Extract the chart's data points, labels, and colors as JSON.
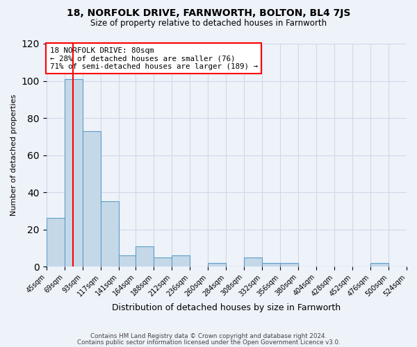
{
  "title": "18, NORFOLK DRIVE, FARNWORTH, BOLTON, BL4 7JS",
  "subtitle": "Size of property relative to detached houses in Farnworth",
  "xlabel": "Distribution of detached houses by size in Farnworth",
  "ylabel": "Number of detached properties",
  "bar_edges": [
    45,
    69,
    93,
    117,
    141,
    164,
    188,
    212,
    236,
    260,
    284,
    308,
    332,
    356,
    380,
    404,
    428,
    452,
    476,
    500,
    524
  ],
  "bar_heights": [
    26,
    101,
    73,
    35,
    6,
    11,
    5,
    6,
    0,
    2,
    0,
    5,
    2,
    2,
    0,
    0,
    0,
    0,
    2,
    0
  ],
  "bar_color": "#c5d8e8",
  "bar_edge_color": "#5a9ec9",
  "red_line_x": 80,
  "ylim": [
    0,
    120
  ],
  "yticks": [
    0,
    20,
    40,
    60,
    80,
    100,
    120
  ],
  "grid_color": "#d0d8e8",
  "background_color": "#eef2f9",
  "annotation_box_text": "18 NORFOLK DRIVE: 80sqm\n← 28% of detached houses are smaller (76)\n71% of semi-detached houses are larger (189) →",
  "footer_line1": "Contains HM Land Registry data © Crown copyright and database right 2024.",
  "footer_line2": "Contains public sector information licensed under the Open Government Licence v3.0.",
  "tick_labels": [
    "45sqm",
    "69sqm",
    "93sqm",
    "117sqm",
    "141sqm",
    "164sqm",
    "188sqm",
    "212sqm",
    "236sqm",
    "260sqm",
    "284sqm",
    "308sqm",
    "332sqm",
    "356sqm",
    "380sqm",
    "404sqm",
    "428sqm",
    "452sqm",
    "476sqm",
    "500sqm",
    "524sqm"
  ]
}
